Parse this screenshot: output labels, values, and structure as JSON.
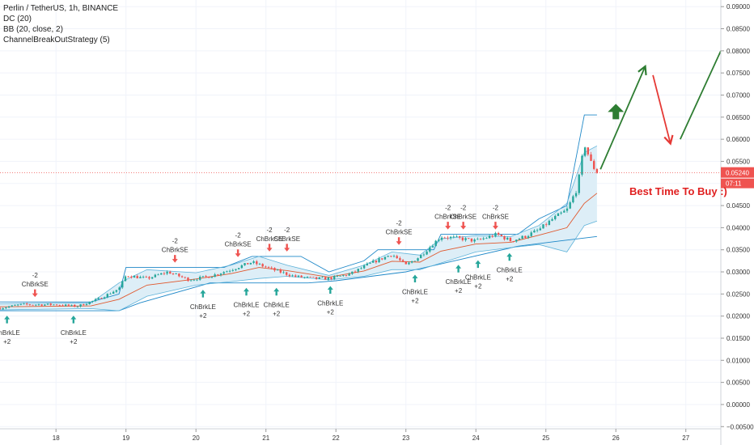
{
  "header": {
    "symbol_line": "Perlin / TetherUS, 1h, BINANCE",
    "indicators": [
      "DC (20)",
      "BB (20, close, 2)",
      "ChannelBreakOutStrategy (5)"
    ]
  },
  "annotation": "Best Time To Buy :)",
  "price_labels": {
    "last": "0.05240",
    "countdown": "07:11"
  },
  "colors": {
    "up": "#26a69a",
    "down": "#ef5350",
    "bb_fill": "#ddeef7",
    "bb_line": "#2196f3",
    "basis": "#e0572c",
    "arrow_green": "#2e7d32",
    "arrow_red": "#e53935"
  },
  "chart_data": {
    "type": "candlestick",
    "title": "Perlin / TetherUS, 1h, BINANCE",
    "x_labels": [
      "18",
      "19",
      "20",
      "21",
      "22",
      "23",
      "24",
      "25",
      "26",
      "27"
    ],
    "y_ticks": [
      "0.09000",
      "0.08500",
      "0.08000",
      "0.07500",
      "0.07000",
      "0.06500",
      "0.06000",
      "0.05500",
      "0.05000",
      "0.04500",
      "0.04000",
      "0.03500",
      "0.03000",
      "0.02500",
      "0.02000",
      "0.01500",
      "0.01000",
      "0.00500",
      "0.00000",
      "−0.00500"
    ],
    "ylim": [
      -0.0055,
      0.0915
    ],
    "xlim": [
      17.2,
      27.5
    ],
    "last_price": 0.0524,
    "price_path": [
      [
        17.2,
        0.0218
      ],
      [
        17.5,
        0.0226
      ],
      [
        18.0,
        0.0226
      ],
      [
        18.3,
        0.0222
      ],
      [
        18.6,
        0.0238
      ],
      [
        18.9,
        0.0262
      ],
      [
        19.0,
        0.0292
      ],
      [
        19.3,
        0.0285
      ],
      [
        19.6,
        0.03
      ],
      [
        19.9,
        0.0282
      ],
      [
        20.2,
        0.029
      ],
      [
        20.5,
        0.0305
      ],
      [
        20.8,
        0.0322
      ],
      [
        21.1,
        0.0305
      ],
      [
        21.4,
        0.029
      ],
      [
        21.7,
        0.0285
      ],
      [
        21.9,
        0.0285
      ],
      [
        22.2,
        0.0295
      ],
      [
        22.5,
        0.032
      ],
      [
        22.8,
        0.034
      ],
      [
        23.0,
        0.0315
      ],
      [
        23.2,
        0.0335
      ],
      [
        23.5,
        0.038
      ],
      [
        23.8,
        0.0375
      ],
      [
        24.0,
        0.037
      ],
      [
        24.3,
        0.0385
      ],
      [
        24.5,
        0.037
      ],
      [
        24.7,
        0.038
      ],
      [
        24.9,
        0.0395
      ],
      [
        25.1,
        0.042
      ],
      [
        25.3,
        0.044
      ],
      [
        25.45,
        0.049
      ],
      [
        25.55,
        0.059
      ],
      [
        25.65,
        0.0545
      ],
      [
        25.73,
        0.0524
      ]
    ],
    "bands": {
      "dc_upper": [
        [
          17.2,
          0.0232
        ],
        [
          18.5,
          0.0232
        ],
        [
          18.9,
          0.025
        ],
        [
          19.0,
          0.031
        ],
        [
          20.4,
          0.031
        ],
        [
          20.8,
          0.0335
        ],
        [
          21.5,
          0.0335
        ],
        [
          21.9,
          0.03
        ],
        [
          22.4,
          0.0325
        ],
        [
          22.6,
          0.035
        ],
        [
          23.4,
          0.035
        ],
        [
          23.5,
          0.0385
        ],
        [
          24.6,
          0.0385
        ],
        [
          24.9,
          0.042
        ],
        [
          25.3,
          0.045
        ],
        [
          25.55,
          0.0655
        ],
        [
          25.73,
          0.0655
        ]
      ],
      "dc_lower": [
        [
          17.2,
          0.0212
        ],
        [
          18.9,
          0.0212
        ],
        [
          19.2,
          0.023
        ],
        [
          20.2,
          0.0275
        ],
        [
          21.6,
          0.0275
        ],
        [
          22.0,
          0.028
        ],
        [
          23.0,
          0.03
        ],
        [
          23.5,
          0.0318
        ],
        [
          24.6,
          0.0358
        ],
        [
          25.2,
          0.037
        ],
        [
          25.73,
          0.038
        ]
      ],
      "bb_upper": [
        [
          17.2,
          0.0228
        ],
        [
          18.5,
          0.023
        ],
        [
          18.9,
          0.0275
        ],
        [
          19.3,
          0.0305
        ],
        [
          20.0,
          0.0298
        ],
        [
          20.5,
          0.0315
        ],
        [
          20.9,
          0.0335
        ],
        [
          21.3,
          0.0315
        ],
        [
          21.9,
          0.0292
        ],
        [
          22.4,
          0.0315
        ],
        [
          22.8,
          0.0345
        ],
        [
          23.2,
          0.0338
        ],
        [
          23.5,
          0.0375
        ],
        [
          24.0,
          0.0382
        ],
        [
          24.5,
          0.038
        ],
        [
          24.9,
          0.0405
        ],
        [
          25.3,
          0.0455
        ],
        [
          25.55,
          0.057
        ],
        [
          25.73,
          0.0585
        ]
      ],
      "bb_lower": [
        [
          17.2,
          0.0214
        ],
        [
          18.5,
          0.0217
        ],
        [
          18.9,
          0.0212
        ],
        [
          19.3,
          0.0245
        ],
        [
          20.0,
          0.027
        ],
        [
          20.5,
          0.0278
        ],
        [
          20.9,
          0.0285
        ],
        [
          21.3,
          0.029
        ],
        [
          21.9,
          0.0282
        ],
        [
          22.4,
          0.029
        ],
        [
          22.8,
          0.0305
        ],
        [
          23.2,
          0.0305
        ],
        [
          23.5,
          0.032
        ],
        [
          24.0,
          0.0345
        ],
        [
          24.5,
          0.0355
        ],
        [
          24.9,
          0.0362
        ],
        [
          25.3,
          0.0345
        ],
        [
          25.55,
          0.0405
        ],
        [
          25.73,
          0.0415
        ]
      ],
      "bb_basis": [
        [
          17.2,
          0.0221
        ],
        [
          18.5,
          0.0223
        ],
        [
          18.9,
          0.0238
        ],
        [
          19.3,
          0.027
        ],
        [
          20.0,
          0.0284
        ],
        [
          20.5,
          0.0296
        ],
        [
          20.9,
          0.031
        ],
        [
          21.3,
          0.0303
        ],
        [
          21.9,
          0.0288
        ],
        [
          22.4,
          0.0302
        ],
        [
          22.8,
          0.0324
        ],
        [
          23.2,
          0.0322
        ],
        [
          23.5,
          0.0347
        ],
        [
          24.0,
          0.0363
        ],
        [
          24.5,
          0.0367
        ],
        [
          24.9,
          0.0383
        ],
        [
          25.3,
          0.04
        ],
        [
          25.55,
          0.0455
        ],
        [
          25.73,
          0.0478
        ]
      ]
    },
    "signals": [
      {
        "x": 17.3,
        "dir": "long",
        "label": "ChBrkLE",
        "qty": "+2"
      },
      {
        "x": 17.7,
        "dir": "short",
        "label": "ChBrkSE",
        "qty": "-2"
      },
      {
        "x": 18.25,
        "dir": "long",
        "label": "ChBrkLE",
        "qty": "+2"
      },
      {
        "x": 19.7,
        "dir": "short",
        "label": "ChBrkSE",
        "qty": "-2"
      },
      {
        "x": 20.1,
        "dir": "long",
        "label": "ChBrkLE",
        "qty": "+2"
      },
      {
        "x": 20.6,
        "dir": "short",
        "label": "ChBrkSE",
        "qty": "-2"
      },
      {
        "x": 20.72,
        "dir": "long",
        "label": "ChBrkLE",
        "qty": "+2"
      },
      {
        "x": 21.05,
        "dir": "short",
        "label": "ChBrkSE",
        "qty": "-2"
      },
      {
        "x": 21.15,
        "dir": "long",
        "label": "ChBrkLE",
        "qty": "+2"
      },
      {
        "x": 21.3,
        "dir": "short",
        "label": "ChBrkSE",
        "qty": "-2"
      },
      {
        "x": 21.92,
        "dir": "long",
        "label": "ChBrkLE",
        "qty": "+2"
      },
      {
        "x": 22.9,
        "dir": "short",
        "label": "ChBrkSE",
        "qty": "-2"
      },
      {
        "x": 23.13,
        "dir": "long",
        "label": "ChBrkLE",
        "qty": "+2"
      },
      {
        "x": 23.6,
        "dir": "short",
        "label": "ChBrkSE",
        "qty": "-2"
      },
      {
        "x": 23.75,
        "dir": "long",
        "label": "ChBrkLE",
        "qty": "+2"
      },
      {
        "x": 23.82,
        "dir": "short",
        "label": "ChBrkSE",
        "qty": "-2"
      },
      {
        "x": 24.03,
        "dir": "long",
        "label": "ChBrkLE",
        "qty": "+2"
      },
      {
        "x": 24.28,
        "dir": "short",
        "label": "ChBrkSE",
        "qty": "-2"
      },
      {
        "x": 24.48,
        "dir": "long",
        "label": "ChBrkLE",
        "qty": "+2"
      }
    ],
    "drawings": {
      "zigzag_green_1": [
        [
          25.78,
          0.0532
        ],
        [
          26.42,
          0.0765
        ]
      ],
      "zigzag_red": [
        [
          26.53,
          0.0745
        ],
        [
          26.78,
          0.059
        ]
      ],
      "zigzag_green_2": [
        [
          26.92,
          0.06
        ],
        [
          27.5,
          0.08
        ]
      ],
      "big_up_arrow": {
        "x": 26.0,
        "y": 0.066
      }
    }
  }
}
